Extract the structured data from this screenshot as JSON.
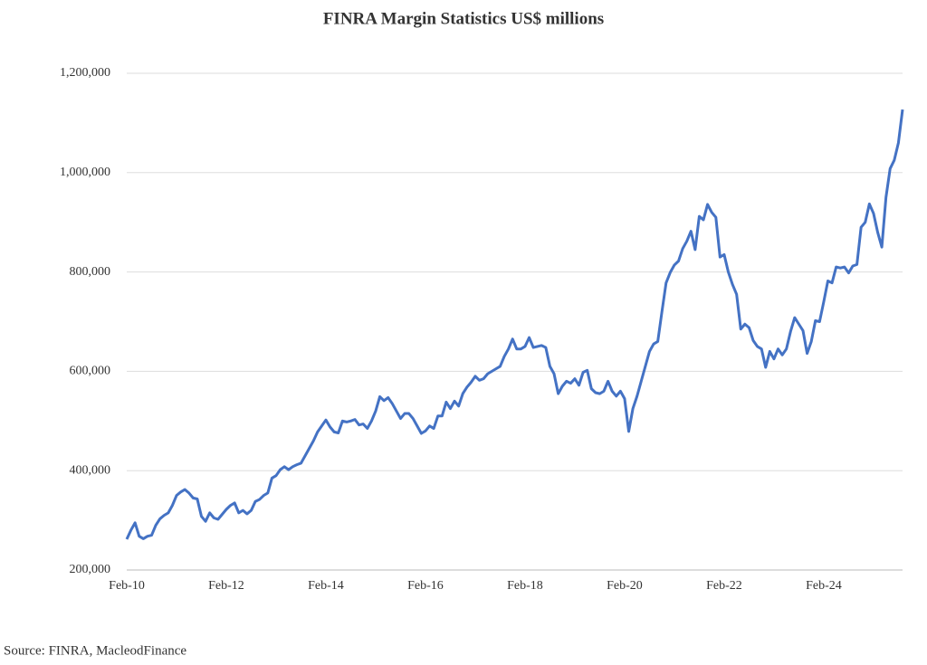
{
  "chart_data": {
    "type": "line",
    "title": "FINRA Margin Statistics US$ millions",
    "source": "Source: FINRA, MacleodFinance",
    "categories": [
      "Feb-10",
      null,
      null,
      null,
      null,
      null,
      null,
      null,
      null,
      null,
      null,
      null,
      null,
      null,
      null,
      null,
      null,
      null,
      null,
      null,
      null,
      null,
      null,
      null,
      "Feb-12",
      null,
      null,
      null,
      null,
      null,
      null,
      null,
      null,
      null,
      null,
      null,
      null,
      null,
      null,
      null,
      null,
      null,
      null,
      null,
      null,
      null,
      null,
      null,
      "Feb-14",
      null,
      null,
      null,
      null,
      null,
      null,
      null,
      null,
      null,
      null,
      null,
      null,
      null,
      null,
      null,
      null,
      null,
      null,
      null,
      null,
      null,
      null,
      null,
      "Feb-16",
      null,
      null,
      null,
      null,
      null,
      null,
      null,
      null,
      null,
      null,
      null,
      null,
      null,
      null,
      null,
      null,
      null,
      null,
      null,
      null,
      null,
      null,
      null,
      "Feb-18",
      null,
      null,
      null,
      null,
      null,
      null,
      null,
      null,
      null,
      null,
      null,
      null,
      null,
      null,
      null,
      null,
      null,
      null,
      null,
      null,
      null,
      null,
      null,
      "Feb-20",
      null,
      null,
      null,
      null,
      null,
      null,
      null,
      null,
      null,
      null,
      null,
      null,
      null,
      null,
      null,
      null,
      null,
      null,
      null,
      null,
      null,
      null,
      null,
      "Feb-22",
      null,
      null,
      null,
      null,
      null,
      null,
      null,
      null,
      null,
      null,
      null,
      null,
      null,
      null,
      null,
      null,
      null,
      null,
      null,
      null,
      null,
      null,
      null,
      "Feb-24",
      null,
      null,
      null,
      null,
      null,
      null,
      null,
      null,
      null,
      null,
      null,
      null,
      null,
      null,
      null,
      null,
      null,
      null,
      null
    ],
    "series": [
      {
        "color": "#4472c4",
        "values": [
          262000,
          280000,
          295000,
          268000,
          263000,
          268000,
          270000,
          290000,
          303000,
          310000,
          315000,
          330000,
          350000,
          357000,
          362000,
          355000,
          345000,
          343000,
          308000,
          298000,
          315000,
          305000,
          302000,
          312000,
          322000,
          330000,
          335000,
          315000,
          320000,
          313000,
          320000,
          338000,
          342000,
          350000,
          355000,
          385000,
          390000,
          402000,
          408000,
          402000,
          408000,
          412000,
          415000,
          430000,
          445000,
          460000,
          478000,
          490000,
          502000,
          488000,
          478000,
          476000,
          500000,
          498000,
          500000,
          503000,
          492000,
          494000,
          485000,
          500000,
          520000,
          549000,
          541000,
          547000,
          535000,
          520000,
          505000,
          515000,
          515000,
          505000,
          490000,
          475000,
          480000,
          490000,
          485000,
          510000,
          510000,
          538000,
          525000,
          540000,
          530000,
          555000,
          568000,
          578000,
          590000,
          582000,
          585000,
          595000,
          600000,
          605000,
          610000,
          630000,
          645000,
          665000,
          645000,
          645000,
          650000,
          668000,
          648000,
          650000,
          652000,
          648000,
          610000,
          595000,
          555000,
          570000,
          580000,
          576000,
          585000,
          572000,
          598000,
          602000,
          565000,
          557000,
          555000,
          560000,
          580000,
          560000,
          550000,
          560000,
          545000,
          479000,
          525000,
          550000,
          580000,
          610000,
          640000,
          655000,
          660000,
          720000,
          778000,
          799000,
          814000,
          822000,
          847000,
          862000,
          882000,
          845000,
          912000,
          905000,
          936000,
          920000,
          910000,
          830000,
          835000,
          800000,
          775000,
          755000,
          685000,
          695000,
          688000,
          662000,
          650000,
          645000,
          608000,
          640000,
          625000,
          645000,
          633000,
          645000,
          680000,
          708000,
          695000,
          682000,
          636000,
          660000,
          702000,
          700000,
          740000,
          782000,
          778000,
          810000,
          808000,
          810000,
          798000,
          812000,
          815000,
          890000,
          900000,
          937000,
          918000,
          880000,
          850000,
          950000,
          1008000,
          1025000,
          1060000,
          1127000
        ]
      }
    ],
    "ylim": [
      200000,
      1200000
    ],
    "yticks": [
      {
        "value": 200000,
        "label": "200,000"
      },
      {
        "value": 400000,
        "label": "400,000"
      },
      {
        "value": 600000,
        "label": "600,000"
      },
      {
        "value": 800000,
        "label": "800,000"
      },
      {
        "value": 1000000,
        "label": "1,000,000"
      },
      {
        "value": 1200000,
        "label": "1,200,000"
      }
    ],
    "grid": true
  }
}
